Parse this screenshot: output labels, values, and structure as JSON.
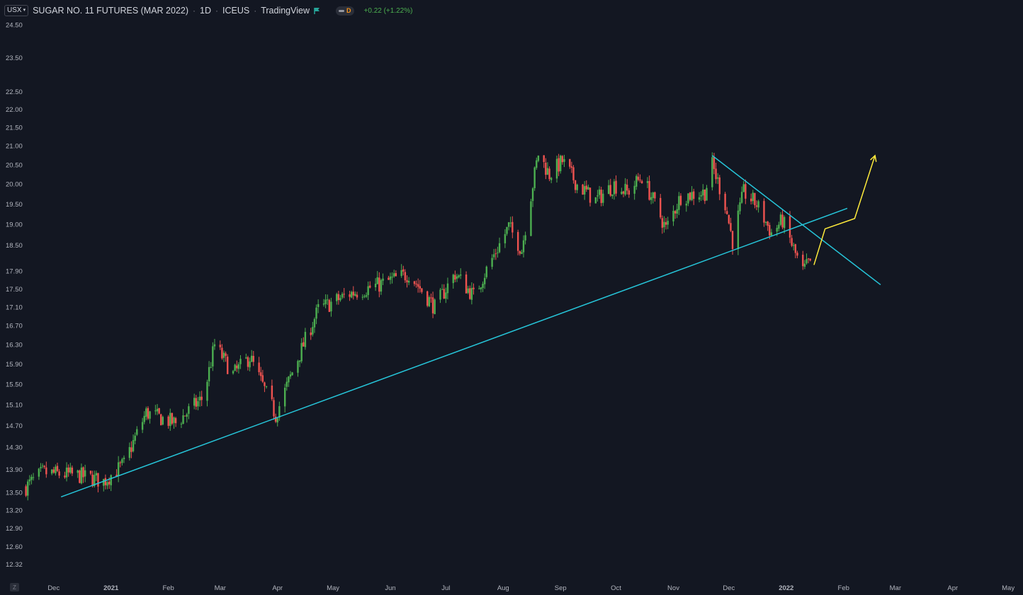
{
  "header": {
    "currency": "USX",
    "title": "SUGAR NO. 11 FUTURES (MAR 2022)",
    "interval": "1D",
    "exchange": "ICEUS",
    "source": "TradingView",
    "mode_badge": "D",
    "change": "+0.22 (+1.22%)"
  },
  "footer": {
    "zoom_button": "Z"
  },
  "colors": {
    "background": "#131722",
    "up": "#4caf50",
    "down": "#ef5350",
    "trendline": "#26c6da",
    "projection": "#ffeb3b",
    "axis_text": "#b2b5be"
  },
  "chart_data": {
    "type": "candlestick",
    "title": "SUGAR NO. 11 FUTURES (MAR 2022)",
    "interval": "1D",
    "y_scale": "log",
    "ylim": [
      12.1,
      25.3
    ],
    "y_ticks": [
      "24.50",
      "23.50",
      "22.50",
      "22.00",
      "21.50",
      "21.00",
      "20.50",
      "20.00",
      "19.50",
      "19.00",
      "18.50",
      "17.90",
      "17.50",
      "17.10",
      "16.70",
      "16.30",
      "15.90",
      "15.50",
      "15.10",
      "14.70",
      "14.30",
      "13.90",
      "13.50",
      "13.20",
      "12.90",
      "12.60",
      "12.32"
    ],
    "x_range": [
      "2020-11-15",
      "2022-05-09"
    ],
    "x_ticks": [
      {
        "label": "Dec",
        "date": "2020-12-01"
      },
      {
        "label": "2021",
        "date": "2021-01-01"
      },
      {
        "label": "Feb",
        "date": "2021-02-01"
      },
      {
        "label": "Mar",
        "date": "2021-03-01"
      },
      {
        "label": "Apr",
        "date": "2021-04-01"
      },
      {
        "label": "May",
        "date": "2021-05-01"
      },
      {
        "label": "Jun",
        "date": "2021-06-01"
      },
      {
        "label": "Jul",
        "date": "2021-07-01"
      },
      {
        "label": "Aug",
        "date": "2021-08-01"
      },
      {
        "label": "Sep",
        "date": "2021-09-01"
      },
      {
        "label": "Oct",
        "date": "2021-10-01"
      },
      {
        "label": "Nov",
        "date": "2021-11-01"
      },
      {
        "label": "Dec",
        "date": "2021-12-01"
      },
      {
        "label": "2022",
        "date": "2022-01-01"
      },
      {
        "label": "Feb",
        "date": "2022-02-01"
      },
      {
        "label": "Mar",
        "date": "2022-03-01"
      },
      {
        "label": "Apr",
        "date": "2022-04-01"
      },
      {
        "label": "May",
        "date": "2022-05-01"
      }
    ],
    "anchors": [
      [
        "2020-11-16",
        13.6
      ],
      [
        "2020-11-25",
        13.85
      ],
      [
        "2020-12-15",
        13.8
      ],
      [
        "2020-12-28",
        13.7
      ],
      [
        "2021-01-08",
        14.0
      ],
      [
        "2021-01-20",
        14.95
      ],
      [
        "2021-02-05",
        14.75
      ],
      [
        "2021-02-20",
        15.25
      ],
      [
        "2021-02-26",
        16.3
      ],
      [
        "2021-03-08",
        15.7
      ],
      [
        "2021-03-17",
        16.05
      ],
      [
        "2021-03-31",
        14.9
      ],
      [
        "2021-04-23",
        17.05
      ],
      [
        "2021-05-10",
        17.4
      ],
      [
        "2021-05-26",
        17.6
      ],
      [
        "2021-06-11",
        17.85
      ],
      [
        "2021-06-25",
        17.1
      ],
      [
        "2021-07-06",
        17.85
      ],
      [
        "2021-07-16",
        17.35
      ],
      [
        "2021-08-04",
        18.95
      ],
      [
        "2021-08-11",
        18.4
      ],
      [
        "2021-08-20",
        20.8
      ],
      [
        "2021-08-26",
        20.25
      ],
      [
        "2021-09-02",
        20.6
      ],
      [
        "2021-09-10",
        20.0
      ],
      [
        "2021-09-20",
        19.6
      ],
      [
        "2021-09-30",
        20.0
      ],
      [
        "2021-10-07",
        19.8
      ],
      [
        "2021-10-15",
        20.2
      ],
      [
        "2021-10-25",
        19.2
      ],
      [
        "2021-10-28",
        18.9
      ],
      [
        "2021-11-05",
        19.7
      ],
      [
        "2021-11-18",
        19.8
      ],
      [
        "2021-11-22",
        20.5
      ],
      [
        "2021-11-29",
        19.5
      ],
      [
        "2021-12-03",
        18.6
      ],
      [
        "2021-12-09",
        19.8
      ],
      [
        "2021-12-16",
        19.5
      ],
      [
        "2021-12-24",
        18.8
      ],
      [
        "2021-12-30",
        19.1
      ],
      [
        "2022-01-06",
        18.3
      ],
      [
        "2022-01-10",
        17.9
      ],
      [
        "2022-01-14",
        18.15
      ]
    ],
    "lines": [
      {
        "kind": "support-trendline",
        "from": [
          "2020-12-05",
          13.43
        ],
        "to": [
          "2022-02-03",
          19.4
        ]
      },
      {
        "kind": "resistance-trendline",
        "from": [
          "2021-11-22",
          20.75
        ],
        "to": [
          "2022-02-21",
          17.6
        ]
      }
    ],
    "projection": {
      "points": [
        [
          "2022-01-16",
          18.05
        ],
        [
          "2022-01-22",
          18.9
        ],
        [
          "2022-02-07",
          19.15
        ],
        [
          "2022-02-18",
          20.75
        ]
      ],
      "arrow": true
    }
  }
}
